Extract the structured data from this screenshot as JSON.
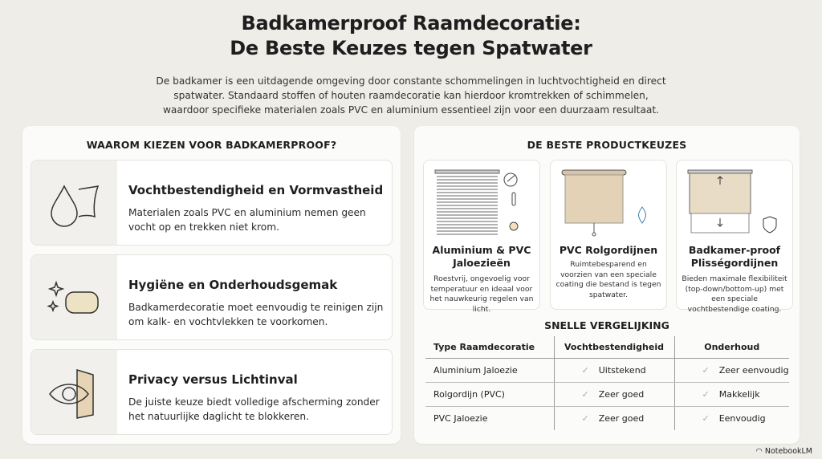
{
  "title": [
    "Badkamerproof Raamdecoratie:",
    "De Beste Keuzes tegen Spatwater"
  ],
  "intro": "De badkamer is een uitdagende omgeving door constante schommelingen in luchtvochtigheid en direct spatwater. Standaard stoffen of houten raamdecoratie kan hierdoor kromtrekken of schimmelen, waardoor specifieke materialen zoals PVC en aluminium essentieel zijn voor een duurzaam resultaat.",
  "left": {
    "heading": "WAAROM KIEZEN VOOR BADKAMERPROOF?",
    "cards": [
      {
        "icon": "water-drop-icon",
        "title": "Vochtbestendigheid en Vormvastheid",
        "text": "Materialen zoals PVC en aluminium nemen geen vocht op en trekken niet krom."
      },
      {
        "icon": "sponge-sparkle-icon",
        "title": "Hygiëne en Onderhoudsgemak",
        "text": "Badkamerdecoratie moet eenvoudig te reinigen zijn om kalk- en vochtvlekken te voorkomen."
      },
      {
        "icon": "eye-privacy-icon",
        "title": "Privacy versus Lichtinval",
        "text": "De juiste keuze biedt volledige afscherming zonder het natuurlijke daglicht te blokkeren."
      }
    ]
  },
  "right": {
    "heading": "DE BESTE PRODUCTKEUZES",
    "products": [
      {
        "icon": "venetian-blind-icon",
        "title": "Aluminium & PVC Jaloezieën",
        "text": "Roestvrij, ongevoelig voor temperatuur en ideaal voor het nauwkeurig regelen van licht."
      },
      {
        "icon": "roller-blind-icon",
        "title": "PVC Rolgordijnen",
        "text": "Ruimtebesparend en voorzien van een speciale coating die bestand is tegen spatwater."
      },
      {
        "icon": "pleated-blind-icon",
        "title": "Badkamer-proof Plisségordijnen",
        "text": "Bieden maximale flexibiliteit (top-down/bottom-up) met een speciale vochtbestendige coating."
      }
    ],
    "comparison": {
      "heading": "SNELLE VERGELIJKING",
      "columns": [
        "Type Raamdecoratie",
        "Vochtbestendigheid",
        "Onderhoud"
      ],
      "rows": [
        [
          "Aluminium Jaloezie",
          "Uitstekend",
          "Zeer eenvoudig"
        ],
        [
          "Rolgordijn (PVC)",
          "Zeer goed",
          "Makkelijk"
        ],
        [
          "PVC Jaloezie",
          "Zeer goed",
          "Eenvoudig"
        ]
      ]
    }
  },
  "brand": "NotebookLM"
}
